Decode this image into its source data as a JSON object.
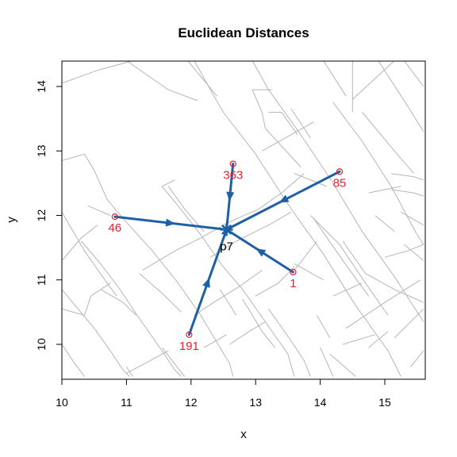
{
  "chart_data": {
    "type": "scatter",
    "title": "Euclidean Distances",
    "xlabel": "x",
    "ylabel": "y",
    "xlim": [
      10,
      15.6
    ],
    "ylim": [
      9.5,
      14.4
    ],
    "xticks": [
      "10",
      "11",
      "12",
      "13",
      "14",
      "15"
    ],
    "yticks": [
      "10",
      "11",
      "12",
      "13",
      "14"
    ],
    "center": {
      "label": "p7",
      "x": 12.55,
      "y": 11.78
    },
    "points": [
      {
        "label": "363",
        "x": 12.65,
        "y": 12.8
      },
      {
        "label": "85",
        "x": 14.3,
        "y": 12.68
      },
      {
        "label": "46",
        "x": 10.82,
        "y": 11.98
      },
      {
        "label": "1",
        "x": 13.58,
        "y": 11.12
      },
      {
        "label": "191",
        "x": 11.97,
        "y": 10.15
      }
    ],
    "roads": [
      [
        [
          10.0,
          14.05
        ],
        [
          10.55,
          14.25
        ],
        [
          11.1,
          14.4
        ]
      ],
      [
        [
          11.0,
          14.4
        ],
        [
          11.65,
          13.95
        ],
        [
          12.1,
          13.78
        ]
      ],
      [
        [
          11.95,
          14.4
        ],
        [
          12.4,
          13.85
        ]
      ],
      [
        [
          12.05,
          14.4
        ],
        [
          12.3,
          13.95
        ],
        [
          12.5,
          13.6
        ]
      ],
      [
        [
          12.5,
          13.6
        ],
        [
          13.0,
          12.95
        ],
        [
          13.55,
          12.1
        ],
        [
          14.05,
          11.4
        ],
        [
          14.55,
          10.6
        ],
        [
          15.05,
          9.9
        ],
        [
          15.25,
          9.5
        ]
      ],
      [
        [
          12.95,
          14.4
        ],
        [
          13.2,
          13.95
        ],
        [
          13.7,
          13.25
        ],
        [
          14.2,
          12.5
        ],
        [
          14.65,
          11.75
        ],
        [
          15.15,
          11.05
        ],
        [
          15.6,
          10.35
        ]
      ],
      [
        [
          12.95,
          13.95
        ],
        [
          13.25,
          13.95
        ]
      ],
      [
        [
          12.95,
          13.95
        ],
        [
          13.1,
          13.6
        ],
        [
          13.15,
          13.35
        ]
      ],
      [
        [
          13.15,
          13.35
        ],
        [
          13.7,
          12.75
        ]
      ],
      [
        [
          13.55,
          13.65
        ],
        [
          13.85,
          13.2
        ]
      ],
      [
        [
          13.2,
          13.6
        ],
        [
          13.4,
          13.6
        ],
        [
          13.65,
          13.25
        ]
      ],
      [
        [
          13.1,
          13.0
        ],
        [
          13.9,
          13.45
        ]
      ],
      [
        [
          14.05,
          14.4
        ],
        [
          14.4,
          13.85
        ]
      ],
      [
        [
          14.5,
          14.4
        ],
        [
          14.5,
          13.6
        ]
      ],
      [
        [
          14.5,
          13.8
        ],
        [
          15.15,
          14.4
        ]
      ],
      [
        [
          14.9,
          14.4
        ],
        [
          15.35,
          13.7
        ],
        [
          15.6,
          13.3
        ]
      ],
      [
        [
          15.3,
          14.4
        ],
        [
          15.6,
          14.0
        ]
      ],
      [
        [
          14.65,
          13.6
        ],
        [
          15.15,
          13.0
        ],
        [
          15.45,
          12.65
        ]
      ],
      [
        [
          14.2,
          13.75
        ],
        [
          14.65,
          13.15
        ],
        [
          15.1,
          12.45
        ],
        [
          15.5,
          11.7
        ],
        [
          15.6,
          11.55
        ]
      ],
      [
        [
          15.1,
          12.65
        ],
        [
          15.45,
          12.6
        ],
        [
          15.6,
          12.55
        ]
      ],
      [
        [
          14.75,
          12.35
        ],
        [
          15.25,
          12.45
        ]
      ],
      [
        [
          15.1,
          12.4
        ],
        [
          15.45,
          12.35
        ],
        [
          15.6,
          12.3
        ]
      ],
      [
        [
          15.25,
          12.05
        ],
        [
          15.6,
          11.85
        ]
      ],
      [
        [
          14.85,
          12.0
        ],
        [
          15.15,
          11.75
        ]
      ],
      [
        [
          15.0,
          11.35
        ],
        [
          15.35,
          11.45
        ],
        [
          15.6,
          11.55
        ]
      ],
      [
        [
          15.3,
          11.55
        ],
        [
          15.6,
          11.3
        ]
      ],
      [
        [
          13.6,
          12.65
        ],
        [
          14.1,
          12.45
        ]
      ],
      [
        [
          13.85,
          12.0
        ],
        [
          14.3,
          11.55
        ],
        [
          14.7,
          10.95
        ],
        [
          15.05,
          10.45
        ]
      ],
      [
        [
          13.9,
          11.95
        ],
        [
          14.35,
          11.3
        ],
        [
          14.75,
          10.75
        ]
      ],
      [
        [
          14.35,
          11.6
        ],
        [
          14.7,
          11.1
        ]
      ],
      [
        [
          14.7,
          11.1
        ],
        [
          15.15,
          10.85
        ],
        [
          15.6,
          10.65
        ]
      ],
      [
        [
          14.2,
          10.75
        ],
        [
          14.65,
          10.95
        ]
      ],
      [
        [
          14.4,
          10.25
        ],
        [
          15.0,
          10.65
        ],
        [
          15.55,
          11.0
        ]
      ],
      [
        [
          14.35,
          10.0
        ],
        [
          14.85,
          10.15
        ]
      ],
      [
        [
          14.75,
          9.95
        ],
        [
          15.05,
          10.2
        ]
      ],
      [
        [
          15.15,
          10.1
        ],
        [
          15.6,
          10.55
        ]
      ],
      [
        [
          15.6,
          9.9
        ],
        [
          15.4,
          9.65
        ]
      ],
      [
        [
          13.95,
          10.45
        ],
        [
          14.15,
          10.1
        ]
      ],
      [
        [
          14.0,
          9.95
        ],
        [
          14.2,
          9.5
        ]
      ],
      [
        [
          14.15,
          9.85
        ],
        [
          14.55,
          9.5
        ]
      ],
      [
        [
          10.4,
          12.15
        ],
        [
          10.75,
          12.0
        ]
      ],
      [
        [
          10.0,
          12.85
        ],
        [
          10.35,
          12.95
        ],
        [
          10.5,
          12.7
        ],
        [
          10.7,
          12.25
        ],
        [
          10.95,
          11.95
        ],
        [
          11.4,
          11.45
        ],
        [
          11.8,
          10.95
        ],
        [
          12.15,
          10.45
        ],
        [
          12.45,
          9.95
        ],
        [
          12.6,
          9.7
        ],
        [
          12.65,
          9.5
        ]
      ],
      [
        [
          11.55,
          12.45
        ],
        [
          11.75,
          12.55
        ]
      ],
      [
        [
          11.55,
          12.45
        ],
        [
          11.8,
          12.15
        ],
        [
          12.15,
          11.7
        ],
        [
          12.5,
          11.2
        ],
        [
          12.8,
          10.85
        ],
        [
          13.15,
          10.35
        ],
        [
          13.5,
          9.85
        ],
        [
          13.6,
          9.5
        ]
      ],
      [
        [
          10.0,
          12.05
        ],
        [
          10.35,
          11.45
        ],
        [
          10.7,
          10.95
        ],
        [
          10.85,
          10.75
        ]
      ],
      [
        [
          10.0,
          11.3
        ],
        [
          10.3,
          11.65
        ],
        [
          10.55,
          11.85
        ]
      ],
      [
        [
          10.3,
          11.6
        ],
        [
          10.6,
          11.25
        ],
        [
          10.9,
          10.85
        ],
        [
          11.2,
          10.4
        ],
        [
          11.55,
          9.9
        ],
        [
          11.75,
          9.6
        ],
        [
          11.85,
          9.5
        ]
      ],
      [
        [
          10.0,
          10.85
        ],
        [
          10.25,
          10.55
        ],
        [
          10.5,
          10.25
        ],
        [
          10.75,
          9.9
        ],
        [
          10.95,
          9.6
        ],
        [
          11.05,
          9.5
        ]
      ],
      [
        [
          10.35,
          10.45
        ],
        [
          10.45,
          10.75
        ],
        [
          10.75,
          10.95
        ]
      ],
      [
        [
          10.0,
          10.55
        ],
        [
          10.35,
          10.45
        ]
      ],
      [
        [
          10.0,
          10.0
        ],
        [
          10.2,
          9.7
        ],
        [
          10.35,
          9.5
        ]
      ],
      [
        [
          10.6,
          10.85
        ],
        [
          10.95,
          10.65
        ],
        [
          11.15,
          10.45
        ]
      ],
      [
        [
          11.0,
          9.65
        ],
        [
          11.1,
          9.5
        ]
      ],
      [
        [
          11.0,
          9.55
        ],
        [
          11.65,
          9.9
        ]
      ],
      [
        [
          11.55,
          9.95
        ],
        [
          11.9,
          9.5
        ]
      ],
      [
        [
          11.25,
          11.15
        ],
        [
          11.75,
          11.45
        ],
        [
          12.15,
          11.65
        ],
        [
          12.6,
          11.9
        ],
        [
          13.05,
          12.1
        ],
        [
          13.4,
          12.35
        ],
        [
          13.75,
          12.65
        ]
      ],
      [
        [
          11.2,
          11.1
        ],
        [
          11.6,
          10.75
        ],
        [
          11.85,
          10.5
        ]
      ],
      [
        [
          12.05,
          10.45
        ],
        [
          12.35,
          10.65
        ],
        [
          12.75,
          10.9
        ],
        [
          13.1,
          11.15
        ]
      ],
      [
        [
          12.45,
          10.85
        ],
        [
          12.7,
          10.45
        ]
      ],
      [
        [
          12.8,
          10.7
        ],
        [
          13.1,
          10.2
        ],
        [
          13.3,
          9.95
        ]
      ],
      [
        [
          13.0,
          10.75
        ],
        [
          13.35,
          10.95
        ],
        [
          13.6,
          11.2
        ]
      ],
      [
        [
          13.2,
          10.55
        ],
        [
          13.55,
          10.05
        ],
        [
          13.75,
          9.75
        ],
        [
          13.85,
          9.5
        ]
      ],
      [
        [
          12.6,
          10.0
        ],
        [
          12.9,
          10.2
        ],
        [
          13.15,
          10.35
        ]
      ],
      [
        [
          12.2,
          9.95
        ],
        [
          12.55,
          10.15
        ]
      ],
      [
        [
          13.6,
          11.15
        ],
        [
          13.95,
          11.6
        ]
      ],
      [
        [
          13.6,
          11.25
        ],
        [
          14.05,
          11.0
        ]
      ],
      [
        [
          11.65,
          12.45
        ],
        [
          11.9,
          12.1
        ],
        [
          12.2,
          11.75
        ]
      ],
      [
        [
          12.3,
          11.35
        ],
        [
          12.7,
          11.6
        ],
        [
          13.2,
          11.85
        ],
        [
          13.55,
          12.05
        ]
      ]
    ]
  }
}
